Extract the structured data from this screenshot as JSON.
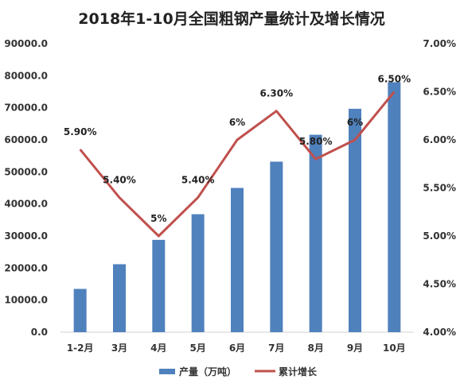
{
  "chart_data": {
    "type": "bar",
    "title": "2018年1-10月全国粗钢产量统计及增长情况",
    "categories": [
      "1-2月",
      "3月",
      "4月",
      "5月",
      "6月",
      "7月",
      "8月",
      "9月",
      "10月"
    ],
    "series": [
      {
        "name": "产量（万吨）",
        "type": "bar",
        "axis": "left",
        "color": "#4f81bd",
        "values": [
          13500,
          21200,
          28800,
          36800,
          45000,
          53200,
          61600,
          69700,
          78000
        ]
      },
      {
        "name": "累计增长",
        "type": "line",
        "axis": "right",
        "color": "#c0504d",
        "values": [
          5.9,
          5.4,
          5.0,
          5.4,
          6.0,
          6.3,
          5.8,
          6.0,
          6.5
        ],
        "labels": [
          "5.90%",
          "5.40%",
          "5%",
          "5.40%",
          "6%",
          "6.30%",
          "5.80%",
          "6%",
          "6.50%"
        ]
      }
    ],
    "y_left": {
      "lim": [
        0,
        90000
      ],
      "ticks": [
        0,
        10000,
        20000,
        30000,
        40000,
        50000,
        60000,
        70000,
        80000,
        90000
      ],
      "tick_labels": [
        "0.0",
        "10000.0",
        "20000.0",
        "30000.0",
        "40000.0",
        "50000.0",
        "60000.0",
        "70000.0",
        "80000.0",
        "90000.0"
      ]
    },
    "y_right": {
      "lim": [
        4.0,
        7.0
      ],
      "ticks": [
        4.0,
        4.5,
        5.0,
        5.5,
        6.0,
        6.5,
        7.0
      ],
      "tick_labels": [
        "4.00%",
        "4.50%",
        "5.00%",
        "5.50%",
        "6.00%",
        "6.50%",
        "7.00%"
      ]
    },
    "grid": false,
    "legend": "bottom"
  }
}
